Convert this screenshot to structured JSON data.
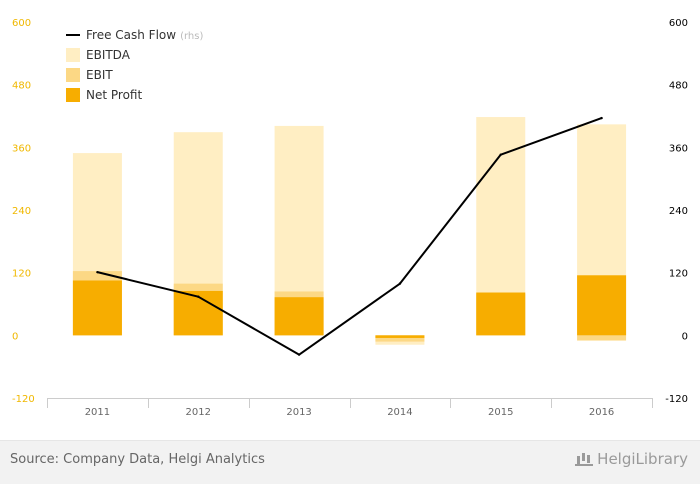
{
  "chart_data": {
    "type": "bar",
    "categories": [
      "2011",
      "2012",
      "2013",
      "2014",
      "2015",
      "2016"
    ],
    "ylim": [
      -120,
      600
    ],
    "yticks": [
      -120,
      0,
      120,
      240,
      360,
      480,
      600
    ],
    "y_left_ticks_color": "#f0b800",
    "y_right_ticks_color": "#000000",
    "series": [
      {
        "name": "EBITDA",
        "type": "bar",
        "color": "#ffeec3",
        "values": [
          349,
          389,
          401,
          -18,
          418,
          404
        ]
      },
      {
        "name": "EBIT",
        "type": "bar",
        "color": "#fcd885",
        "values": [
          123,
          99,
          84,
          -12,
          80,
          -10
        ]
      },
      {
        "name": "Net Profit",
        "type": "bar",
        "color": "#f7ad00",
        "values": [
          105,
          85,
          73,
          -5,
          82,
          115
        ]
      },
      {
        "name": "Free Cash Flow",
        "name_suffix": "(rhs)",
        "type": "line",
        "axis": "right",
        "color": "#000000",
        "values": [
          121,
          74,
          -37,
          99,
          346,
          416
        ]
      }
    ],
    "legend_position": "top-left",
    "grid": false
  },
  "footer": {
    "source": "Source: Company Data, Helgi Analytics",
    "logo_text": "HelgiLibrary"
  }
}
